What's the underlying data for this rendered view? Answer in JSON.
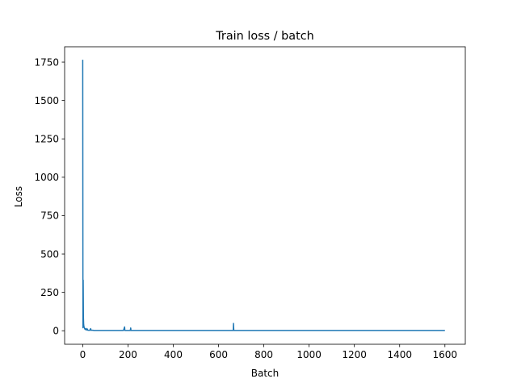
{
  "chart_data": {
    "type": "line",
    "title": "Train loss / batch",
    "xlabel": "Batch",
    "ylabel": "Loss",
    "xlim": [
      -80,
      1690
    ],
    "ylim": [
      -88,
      1850
    ],
    "xticks": [
      0,
      200,
      400,
      600,
      800,
      1000,
      1200,
      1400,
      1600
    ],
    "yticks": [
      0,
      250,
      500,
      750,
      1000,
      1250,
      1500,
      1750
    ],
    "grid": false,
    "legend": "none",
    "series": [
      {
        "color": "#1f77b4",
        "x": [
          0,
          1,
          2,
          3,
          4,
          5,
          6,
          7,
          8,
          9,
          10,
          12,
          14,
          16,
          18,
          20,
          22,
          25,
          28,
          30,
          32,
          35,
          37,
          40,
          45,
          50,
          60,
          80,
          100,
          120,
          150,
          180,
          185,
          186,
          190,
          200,
          210,
          212,
          213,
          220,
          250,
          300,
          400,
          500,
          600,
          660,
          665,
          666,
          667,
          668,
          670,
          700,
          800,
          900,
          1000,
          1100,
          1200,
          1300,
          1400,
          1500,
          1600
        ],
        "y": [
          1765,
          20,
          330,
          90,
          45,
          30,
          25,
          20,
          15,
          12,
          10,
          8,
          15,
          6,
          5,
          12,
          4,
          3,
          4,
          3,
          3,
          14,
          3,
          3,
          3,
          2,
          2,
          2,
          2,
          2,
          2,
          2,
          25,
          2,
          2,
          2,
          2,
          18,
          2,
          2,
          2,
          2,
          2,
          2,
          2,
          2,
          2,
          48,
          10,
          2,
          2,
          2,
          2,
          2,
          2,
          2,
          2,
          2,
          2,
          2,
          2
        ]
      }
    ]
  }
}
